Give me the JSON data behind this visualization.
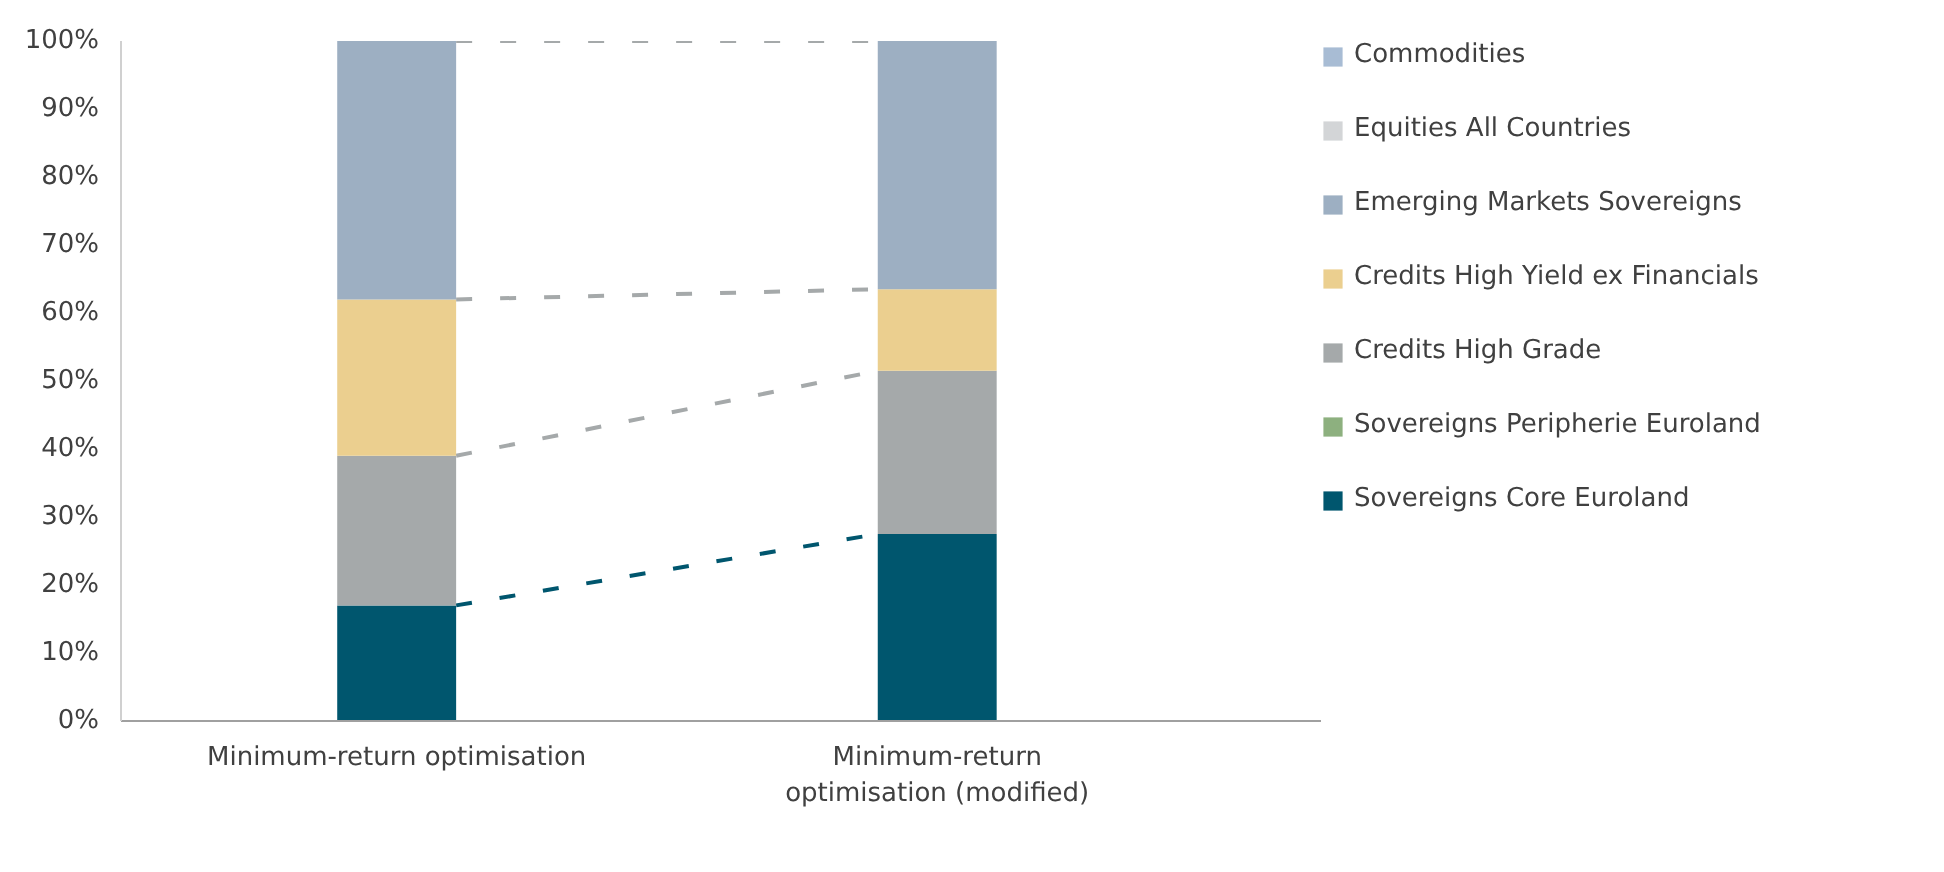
{
  "chart_data": {
    "type": "bar",
    "stacked": true,
    "categories": [
      "Minimum-return optimisation",
      "Minimum-return\noptimisation (modified)"
    ],
    "series": [
      {
        "name": "Sovereigns Core Euroland",
        "color": "#00566e",
        "values": [
          17,
          27.5
        ]
      },
      {
        "name": "Sovereigns Peripherie Euroland",
        "color": "#8db07f",
        "values": [
          0,
          0
        ]
      },
      {
        "name": "Credits High Grade",
        "color": "#a5a9aa",
        "values": [
          22,
          24
        ]
      },
      {
        "name": "Credits High Yield ex Financials",
        "color": "#ebcf8f",
        "values": [
          23,
          12
        ]
      },
      {
        "name": "Emerging Markets Sovereigns",
        "color": "#9dafc2",
        "values": [
          38,
          36.5
        ]
      },
      {
        "name": "Equities All Countries",
        "color": "#d3d5d7",
        "values": [
          0,
          0
        ]
      },
      {
        "name": "Commodities",
        "color": "#a8bcd4",
        "values": [
          0,
          0
        ]
      }
    ],
    "ylim": [
      0,
      100
    ],
    "yticks": [
      {
        "value": 0,
        "label": "0%"
      },
      {
        "value": 10,
        "label": "10%"
      },
      {
        "value": 20,
        "label": "20%"
      },
      {
        "value": 30,
        "label": "30%"
      },
      {
        "value": 40,
        "label": "40%"
      },
      {
        "value": 50,
        "label": "50%"
      },
      {
        "value": 60,
        "label": "60%"
      },
      {
        "value": 70,
        "label": "70%"
      },
      {
        "value": 80,
        "label": "80%"
      },
      {
        "value": 90,
        "label": "90%"
      },
      {
        "value": 100,
        "label": "100%"
      }
    ],
    "grid": false,
    "legend": "right"
  }
}
